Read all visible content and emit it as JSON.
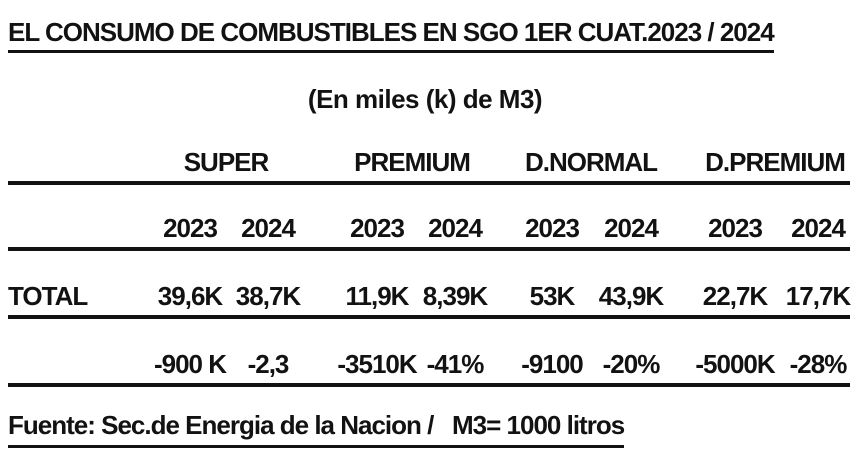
{
  "title": "EL CONSUMO DE COMBUSTIBLES EN SGO 1ER CUAT.2023 / 2024",
  "subtitle": "(En miles (k) de M3)",
  "colors": {
    "text": "#121212",
    "background": "#ffffff"
  },
  "table": {
    "groups": [
      {
        "label": "SUPER",
        "years": [
          "2023",
          "2024"
        ]
      },
      {
        "label": "PREMIUM",
        "years": [
          "2023",
          "2024"
        ]
      },
      {
        "label": "D.NORMAL",
        "years": [
          "2023",
          "2024"
        ]
      },
      {
        "label": "D.PREMIUM",
        "years": [
          "2023",
          "2024"
        ]
      }
    ],
    "rows": [
      {
        "label": "TOTAL",
        "values": [
          "39,6K",
          "38,7K",
          "11,9K",
          "8,39K",
          "53K",
          "43,9K",
          "22,7K",
          "17,7K"
        ]
      },
      {
        "label": "",
        "values": [
          "-900 K",
          "-2,3",
          "-3510K",
          "-41%",
          "-9100",
          "-20%",
          "-5000K",
          "-28%"
        ]
      }
    ]
  },
  "footer": "Fuente: Sec.de Energia de la Nacion /   M3= 1000 litros"
}
